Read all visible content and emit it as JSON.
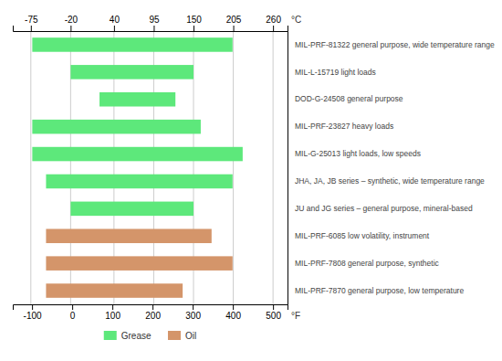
{
  "chart_data": {
    "type": "bar",
    "orientation": "horizontal",
    "categories": [
      "MIL-PRF-81322 general purpose, wide temperature range",
      "MIL-L-15719 light loads",
      "DOD-G-24508 general purpose",
      "MIL-PRF-23827 heavy loads",
      "MIL-G-25013 light loads, low speeds",
      "JHA, JA, JB series – synthetic, wide temperature range",
      "JU and JG series – general purpose, mineral-based",
      "MIL-PRF-6085 low volatility, instrument",
      "MIL-PRF-7808 general purpose, synthetic",
      "MIL-PRF-7870 general purpose, low temperature"
    ],
    "series": [
      {
        "name": "Grease",
        "color": "#5de87b",
        "start": [
          -73,
          -20,
          20,
          -73,
          -73,
          -54,
          -20,
          null,
          null,
          null
        ],
        "values": [
          204,
          150,
          125,
          160,
          218,
          204,
          150,
          null,
          null,
          null
        ]
      },
      {
        "name": "Oil",
        "color": "#d4956a",
        "start": [
          null,
          null,
          null,
          null,
          null,
          null,
          null,
          -54,
          -54,
          -54
        ],
        "values": [
          null,
          null,
          null,
          null,
          null,
          null,
          null,
          175,
          204,
          135
        ]
      }
    ],
    "xlabel": "°C",
    "xlim": [
      -100,
      280
    ],
    "xticks": [
      -75,
      -20,
      40,
      95,
      150,
      205,
      260
    ],
    "x2label": "°F",
    "x2lim": [
      -148,
      536
    ],
    "x2ticks": [
      -100,
      0,
      100,
      200,
      300,
      400,
      500
    ],
    "grid": true,
    "legend": "bottom"
  }
}
